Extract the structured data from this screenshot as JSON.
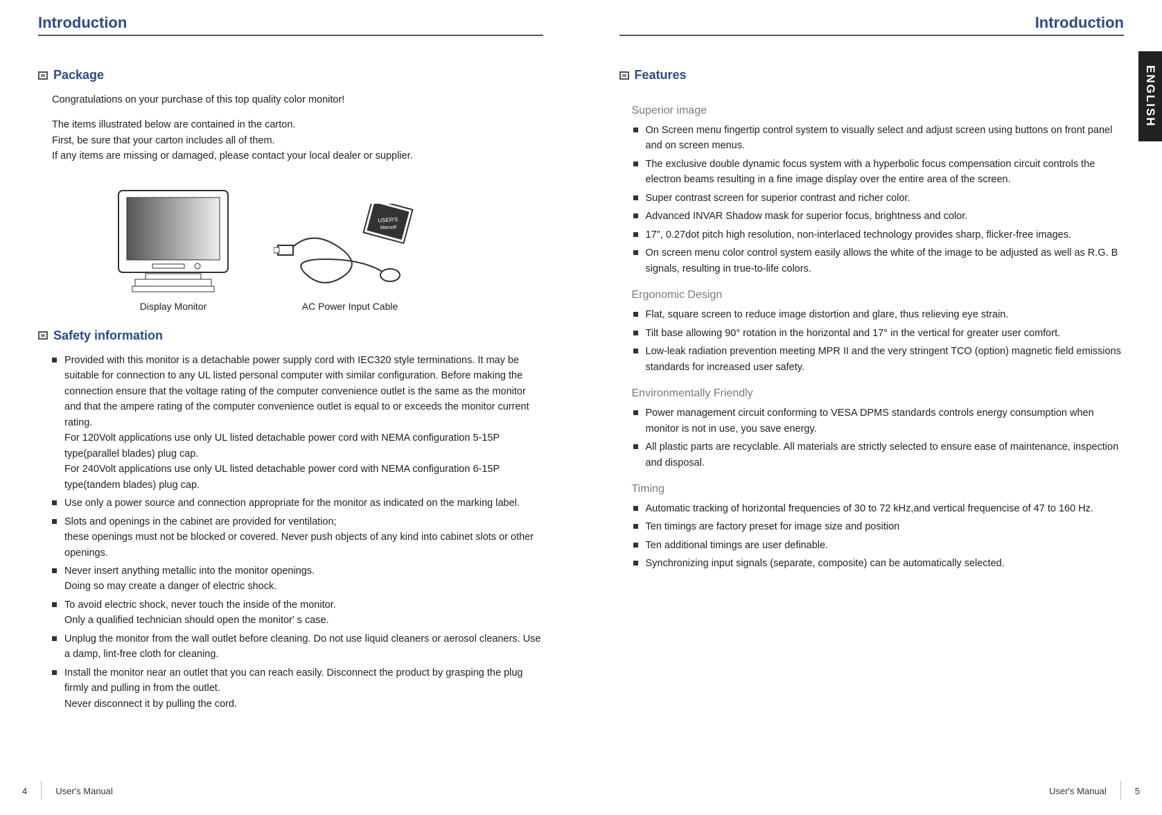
{
  "left": {
    "title": "Introduction",
    "package": {
      "heading": "Package",
      "intro": "Congratulations on your purchase of this top quality color monitor!",
      "p1": "The  items illustrated below are contained in the carton.",
      "p2": "First, be sure that your carton includes all of them.",
      "p3": "If any items are missing or damaged, please contact your local dealer or supplier.",
      "monitor_label": "Display Monitor",
      "cable_label": "AC Power Input Cable",
      "manual_label": "USER'S Manual"
    },
    "safety": {
      "heading": "Safety information",
      "items": [
        "Provided with this monitor is a detachable power supply cord with IEC320 style terminations. It may be suitable for connection to any UL listed personal computer with similar configuration. Before making the connection ensure that the voltage rating of the computer convenience outlet is the same as the monitor and that the ampere rating of the computer convenience outlet is equal to or exceeds the monitor current rating.\nFor 120Volt applications use only UL listed detachable power cord with NEMA configuration 5-15P type(parallel blades) plug cap.\nFor 240Volt applications use only UL listed detachable power cord with NEMA configuration 6-15P type(tandem blades) plug cap.",
        "Use only a power source and connection appropriate for the monitor as indicated on the marking label.",
        "Slots and openings in the cabinet are provided for ventilation;\nthese openings must not be blocked or covered. Never push objects of any kind into cabinet slots or other openings.",
        "Never insert anything metallic into the monitor openings.\nDoing so may create a danger of electric shock.",
        "To avoid electric shock, never touch the inside of the monitor.\nOnly a qualified technician should open the monitor' s case.",
        "Unplug the monitor from the wall outlet before cleaning. Do not use liquid cleaners or aerosol cleaners. Use a damp, lint-free cloth for cleaning.",
        "Install the monitor near an outlet that you can reach easily. Disconnect the product by grasping the plug firmly and pulling in from the outlet.\nNever disconnect it by pulling the cord."
      ]
    },
    "footer": {
      "page": "4",
      "label": "User's Manual"
    }
  },
  "right": {
    "title": "Introduction",
    "lang_tab": "ENGLISH",
    "features": {
      "heading": "Features",
      "groups": [
        {
          "title": "Superior image",
          "items": [
            "On Screen menu fingertip control system to visually select and adjust screen using buttons on front panel and on screen menus.",
            "The exclusive double dynamic focus system with a hyperbolic focus compensation circuit controls the electron beams resulting in a fine image display over the entire area of the screen.",
            "Super contrast screen for superior contrast and richer color.",
            "Advanced INVAR Shadow mask for superior focus, brightness and color.",
            "17\", 0.27dot pitch high resolution, non-interlaced technology provides sharp, flicker-free images.",
            "On screen menu color control system easily allows the white of the image to be adjusted as well as R.G. B signals, resulting in true-to-life colors."
          ]
        },
        {
          "title": "Ergonomic Design",
          "items": [
            "Flat, square screen to reduce image distortion and glare, thus relieving eye strain.",
            "Tilt base allowing 90° rotation in the horizontal and 17° in the vertical for greater user comfort.",
            "Low-leak radiation prevention meeting MPR II and the very stringent TCO (option) magnetic field emissions standards for increased user safety."
          ]
        },
        {
          "title": "Environmentally Friendly",
          "items": [
            "Power management circuit conforming to VESA DPMS standards controls energy consumption when monitor is not in use, you save energy.",
            "All plastic parts are recyclable. All materials are strictly selected to ensure ease of maintenance, inspection and disposal."
          ]
        },
        {
          "title": "Timing",
          "items": [
            "Automatic tracking of horizontal frequencies of 30 to 72 kHz,and vertical frequencise of 47 to 160 Hz.",
            "Ten timings are factory preset for image size and position",
            "Ten additional timings are user definable.",
            "Synchronizing input signals (separate, composite) can be automatically selected."
          ]
        }
      ]
    },
    "footer": {
      "page": "5",
      "label": "User's Manual"
    }
  },
  "colors": {
    "heading": "#2a4a8a",
    "subhead": "#7a7a7a",
    "text": "#222222",
    "rule": "#555555",
    "tab_bg": "#222222",
    "tab_fg": "#ffffff"
  }
}
